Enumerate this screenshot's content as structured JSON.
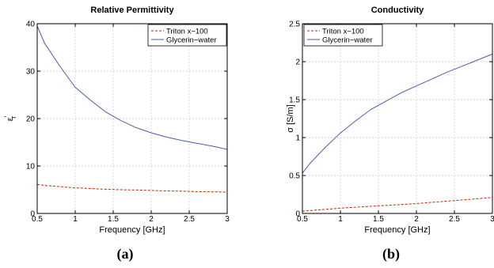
{
  "chart_data": [
    {
      "type": "line",
      "title": "Relative Permittivity",
      "xlabel": "Frequency [GHz]",
      "ylabel_main": "ε",
      "ylabel_prime": "′",
      "ylabel_sub": "r",
      "xlim": [
        0.5,
        3
      ],
      "ylim": [
        0,
        40
      ],
      "xticks": [
        0.5,
        1,
        1.5,
        2,
        2.5,
        3
      ],
      "yticks": [
        0,
        10,
        20,
        30,
        40
      ],
      "xtick_labels": [
        "0.5",
        "1",
        "1.5",
        "2",
        "2.5",
        "3"
      ],
      "ytick_labels": [
        "0",
        "10",
        "20",
        "30",
        "40"
      ],
      "grid": true,
      "legend_position": "top-right",
      "caption": "(a)",
      "series": [
        {
          "name": "Triton x−100",
          "color": "#cc2200",
          "dash": "dashed",
          "x": [
            0.5,
            0.6,
            0.8,
            1.0,
            1.2,
            1.4,
            1.6,
            1.8,
            2.0,
            2.2,
            2.4,
            2.6,
            2.8,
            3.0
          ],
          "y": [
            6.1,
            5.9,
            5.65,
            5.4,
            5.25,
            5.1,
            5.0,
            4.95,
            4.85,
            4.75,
            4.7,
            4.6,
            4.55,
            4.5
          ]
        },
        {
          "name": "Glycerin−water",
          "color": "#4a5ea8",
          "dash": "solid",
          "x": [
            0.5,
            0.6,
            0.8,
            1.0,
            1.2,
            1.4,
            1.6,
            1.8,
            2.0,
            2.2,
            2.4,
            2.6,
            2.8,
            3.0
          ],
          "y": [
            39.5,
            35.8,
            31.0,
            26.6,
            23.9,
            21.4,
            19.6,
            18.1,
            17.0,
            16.1,
            15.4,
            14.8,
            14.2,
            13.5
          ]
        }
      ]
    },
    {
      "type": "line",
      "title": "Conductivity",
      "xlabel": "Frequency [GHz]",
      "ylabel": "σ [S/m]",
      "xlim": [
        0.5,
        3
      ],
      "ylim": [
        0,
        2.5
      ],
      "xticks": [
        0.5,
        1,
        1.5,
        2,
        2.5,
        3
      ],
      "yticks": [
        0,
        0.5,
        1,
        1.5,
        2,
        2.5
      ],
      "xtick_labels": [
        "0.5",
        "1",
        "1.5",
        "2",
        "2.5",
        "3"
      ],
      "ytick_labels": [
        "0",
        "0.5",
        "1",
        "1.5",
        "2",
        "2.5"
      ],
      "grid": true,
      "legend_position": "top-left",
      "caption": "(b)",
      "series": [
        {
          "name": "Triton x−100",
          "color": "#cc2200",
          "dash": "dashed",
          "x": [
            0.5,
            0.75,
            1.0,
            1.25,
            1.5,
            1.75,
            2.0,
            2.25,
            2.5,
            2.75,
            3.0
          ],
          "y": [
            0.03,
            0.05,
            0.07,
            0.085,
            0.1,
            0.115,
            0.13,
            0.15,
            0.17,
            0.19,
            0.21
          ]
        },
        {
          "name": "Glycerin−water",
          "color": "#4a5ea8",
          "dash": "solid",
          "x": [
            0.5,
            0.6,
            0.8,
            1.0,
            1.2,
            1.4,
            1.6,
            1.8,
            2.0,
            2.2,
            2.4,
            2.6,
            2.8,
            3.0
          ],
          "y": [
            0.53,
            0.66,
            0.87,
            1.06,
            1.22,
            1.37,
            1.48,
            1.59,
            1.68,
            1.77,
            1.86,
            1.94,
            2.02,
            2.1
          ]
        }
      ]
    }
  ]
}
